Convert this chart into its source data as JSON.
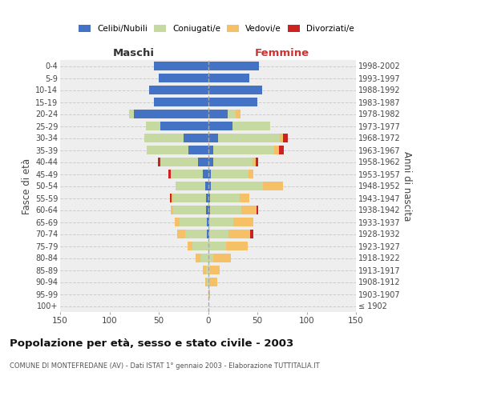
{
  "age_groups": [
    "100+",
    "95-99",
    "90-94",
    "85-89",
    "80-84",
    "75-79",
    "70-74",
    "65-69",
    "60-64",
    "55-59",
    "50-54",
    "45-49",
    "40-44",
    "35-39",
    "30-34",
    "25-29",
    "20-24",
    "15-19",
    "10-14",
    "5-9",
    "0-4"
  ],
  "birth_years": [
    "≤ 1902",
    "1903-1907",
    "1908-1912",
    "1913-1917",
    "1918-1922",
    "1923-1927",
    "1928-1932",
    "1933-1937",
    "1938-1942",
    "1943-1947",
    "1948-1952",
    "1953-1957",
    "1958-1962",
    "1963-1967",
    "1968-1972",
    "1973-1977",
    "1978-1982",
    "1983-1987",
    "1988-1992",
    "1993-1997",
    "1998-2002"
  ],
  "males_celibi": [
    0,
    0,
    0,
    0,
    0,
    0,
    1,
    1,
    2,
    2,
    3,
    5,
    10,
    20,
    25,
    48,
    75,
    55,
    60,
    50,
    55
  ],
  "males_coniugati": [
    0,
    0,
    1,
    2,
    8,
    16,
    22,
    28,
    33,
    33,
    30,
    33,
    38,
    42,
    40,
    15,
    5,
    0,
    0,
    0,
    0
  ],
  "males_vedovi": [
    0,
    0,
    2,
    3,
    5,
    5,
    8,
    5,
    3,
    2,
    0,
    0,
    0,
    0,
    0,
    0,
    0,
    0,
    0,
    0,
    0
  ],
  "males_divorziati": [
    0,
    0,
    0,
    0,
    0,
    0,
    0,
    0,
    0,
    2,
    0,
    2,
    3,
    0,
    0,
    0,
    0,
    0,
    0,
    0,
    0
  ],
  "females_nubili": [
    0,
    0,
    0,
    0,
    0,
    0,
    1,
    1,
    2,
    2,
    3,
    3,
    5,
    5,
    10,
    25,
    20,
    50,
    55,
    42,
    52
  ],
  "females_coniugate": [
    0,
    0,
    1,
    2,
    5,
    18,
    20,
    25,
    32,
    30,
    53,
    38,
    40,
    62,
    63,
    38,
    8,
    0,
    0,
    0,
    0
  ],
  "females_vedove": [
    0,
    2,
    8,
    10,
    18,
    22,
    22,
    20,
    15,
    10,
    20,
    5,
    3,
    5,
    3,
    0,
    5,
    0,
    0,
    0,
    0
  ],
  "females_divorziate": [
    0,
    0,
    0,
    0,
    0,
    0,
    3,
    0,
    2,
    0,
    0,
    0,
    3,
    5,
    5,
    0,
    0,
    0,
    0,
    0,
    0
  ],
  "color_celibi": "#4472c4",
  "color_coniugati": "#c5d9a0",
  "color_vedovi": "#f5c066",
  "color_divorziati": "#cc2222",
  "xlim": 150,
  "title": "Popolazione per età, sesso e stato civile - 2003",
  "subtitle": "COMUNE DI MONTEFREDANE (AV) - Dati ISTAT 1° gennaio 2003 - Elaborazione TUTTITALIA.IT",
  "ylabel_left": "Fasce di età",
  "ylabel_right": "Anni di nascita",
  "label_maschi": "Maschi",
  "label_femmine": "Femmine",
  "legend_labels": [
    "Celibi/Nubili",
    "Coniugati/e",
    "Vedovi/e",
    "Divorziati/e"
  ],
  "bg_color": "#eeeeee"
}
